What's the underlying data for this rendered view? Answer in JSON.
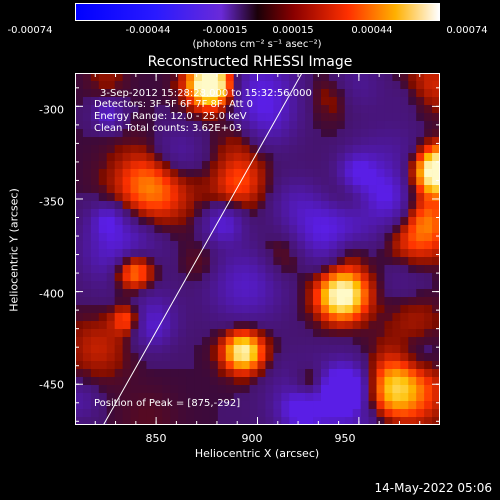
{
  "colorbar": {
    "ticks": [
      "-0.00074",
      "-0.00044",
      "-0.00015",
      "0.00015",
      "0.00044",
      "0.00074"
    ],
    "unit": "(photons cm⁻² s⁻¹ asec⁻²)"
  },
  "title": "Reconstructed RHESSI Image",
  "annotations": {
    "time_range": "3-Sep-2012 15:28:28.000 to 15:32:56.000",
    "detectors": "Detectors: 3F 5F 6F 7F 8F, Att 0",
    "energy": "Energy Range: 12.0 - 25.0 keV",
    "clean": "Clean    Total counts: 3.62E+03",
    "peak": "Position of Peak = [875,-292]"
  },
  "chart_data": {
    "type": "heatmap",
    "title": "Reconstructed RHESSI Image",
    "xlabel": "Heliocentric X (arcsec)",
    "ylabel": "Heliocentric Y (arcsec)",
    "xlim": [
      810,
      990
    ],
    "ylim": [
      -472,
      -282
    ],
    "xticks": [
      "850",
      "900",
      "950"
    ],
    "yticks": [
      "-300",
      "-350",
      "-400",
      "-450"
    ],
    "colorscale": {
      "min": -0.00074,
      "max": 0.00074
    },
    "peak": [
      875,
      -292
    ],
    "limb_line": [
      [
        824,
        -472
      ],
      [
        924,
        -278
      ]
    ]
  },
  "timestamp": "14-May-2022 05:06"
}
